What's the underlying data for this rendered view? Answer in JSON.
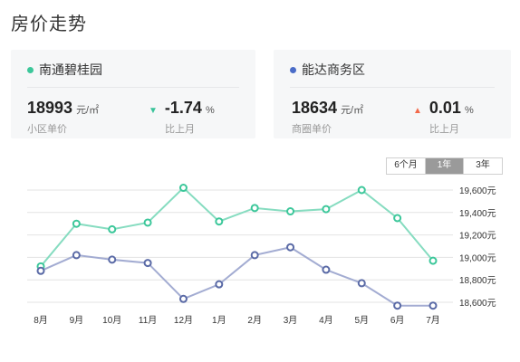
{
  "title": "房价走势",
  "cards": [
    {
      "name": "南通碧桂园",
      "color": "#3cc79a",
      "price": "18993",
      "price_unit": "元/㎡",
      "price_label": "小区单价",
      "change": "-1.74",
      "change_unit": "%",
      "change_label": "比上月",
      "change_direction": "down"
    },
    {
      "name": "能达商务区",
      "color": "#4a6cc8",
      "price": "18634",
      "price_unit": "元/㎡",
      "price_label": "商圈单价",
      "change": "0.01",
      "change_unit": "%",
      "change_label": "比上月",
      "change_direction": "up"
    }
  ],
  "period_tabs": [
    "6个月",
    "1年",
    "3年"
  ],
  "active_period": "1年",
  "colors": {
    "series_1": "#86dcc0",
    "series_1_marker": "#3cc79a",
    "series_2": "#a3acd2",
    "series_2_marker": "#5a6aa6",
    "grid": "#e3e3e3"
  },
  "chart_data": {
    "type": "line",
    "categories": [
      "8月",
      "9月",
      "10月",
      "11月",
      "12月",
      "1月",
      "2月",
      "3月",
      "4月",
      "5月",
      "6月",
      "7月"
    ],
    "series": [
      {
        "name": "南通碧桂园",
        "values": [
          18920,
          19300,
          19250,
          19310,
          19620,
          19320,
          19440,
          19410,
          19430,
          19600,
          19350,
          18970
        ]
      },
      {
        "name": "能达商务区",
        "values": [
          18880,
          19020,
          18980,
          18950,
          18630,
          18760,
          19020,
          19090,
          18890,
          18770,
          18570,
          18570
        ]
      }
    ],
    "y_ticks": [
      "18,600元",
      "18,800元",
      "19,000元",
      "19,200元",
      "19,400元",
      "19,600元"
    ],
    "ylim": [
      18530,
      19630
    ],
    "grid": true,
    "legend": "none"
  }
}
